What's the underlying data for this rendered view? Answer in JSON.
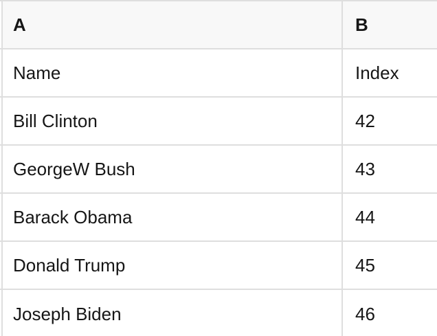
{
  "table": {
    "columns": [
      {
        "id": "A",
        "label": "A"
      },
      {
        "id": "B",
        "label": "B"
      }
    ],
    "rows": [
      {
        "a": "Name",
        "b": "Index"
      },
      {
        "a": "Bill Clinton",
        "b": "42"
      },
      {
        "a": "GeorgeW Bush",
        "b": "43"
      },
      {
        "a": "Barack Obama",
        "b": "44"
      },
      {
        "a": "Donald Trump",
        "b": "45"
      },
      {
        "a": "Joseph Biden",
        "b": "46"
      }
    ],
    "colors": {
      "header_bg": "#f8f8f8",
      "border": "#dedede",
      "text": "#161616",
      "body_bg": "#ffffff"
    }
  }
}
